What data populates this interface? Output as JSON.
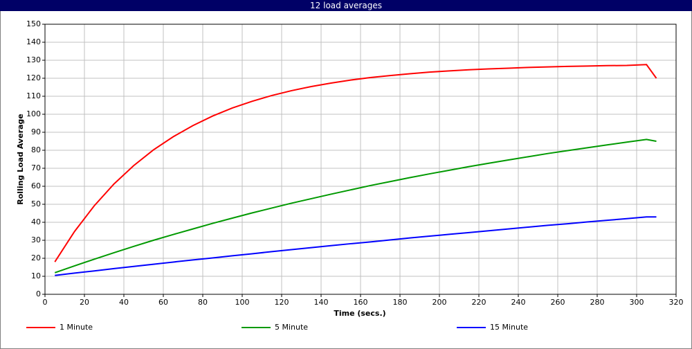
{
  "chart_data": {
    "type": "line",
    "title": "12 load averages",
    "x_label": "Time (secs.)",
    "y_label": "Rolling Load Average",
    "x": [
      5,
      15,
      25,
      35,
      45,
      55,
      65,
      75,
      85,
      95,
      105,
      115,
      125,
      135,
      145,
      155,
      165,
      175,
      185,
      195,
      205,
      215,
      225,
      235,
      245,
      255,
      265,
      275,
      285,
      295,
      305,
      310
    ],
    "series": [
      {
        "name": "1 Minute",
        "color": "#ff0000",
        "values": [
          18,
          34.9,
          49.2,
          61.3,
          71.5,
          80.2,
          87.5,
          93.7,
          99.0,
          103.5,
          107.2,
          110.4,
          113.1,
          115.4,
          117.3,
          119.0,
          120.4,
          121.5,
          122.5,
          123.4,
          124.1,
          124.7,
          125.2,
          125.6,
          126.0,
          126.3,
          126.6,
          126.8,
          127.0,
          127.1,
          127.6,
          120
        ]
      },
      {
        "name": "5 Minute",
        "color": "#009900",
        "values": [
          12,
          15.8,
          19.5,
          23.1,
          26.6,
          30.0,
          33.2,
          36.3,
          39.4,
          42.3,
          45.2,
          47.9,
          50.6,
          53.1,
          55.6,
          58.0,
          60.4,
          62.6,
          64.8,
          66.9,
          68.9,
          70.9,
          72.8,
          74.6,
          76.4,
          78.2,
          79.8,
          81.4,
          83.0,
          84.5,
          86.0,
          85
        ]
      },
      {
        "name": "15 Minute",
        "color": "#0000ff",
        "values": [
          10.5,
          11.8,
          13.0,
          14.3,
          15.5,
          16.7,
          17.9,
          19.1,
          20.2,
          21.4,
          22.5,
          23.7,
          24.8,
          25.9,
          27.0,
          28.1,
          29.1,
          30.2,
          31.3,
          32.3,
          33.3,
          34.3,
          35.3,
          36.3,
          37.3,
          38.3,
          39.2,
          40.2,
          41.1,
          42.0,
          43.0,
          43.0
        ]
      }
    ],
    "xlim": [
      0,
      320
    ],
    "xticks": [
      0,
      20,
      40,
      60,
      80,
      100,
      120,
      140,
      160,
      180,
      200,
      220,
      240,
      260,
      280,
      300,
      320
    ],
    "ylim": [
      0,
      150
    ],
    "yticks": [
      0,
      10,
      20,
      30,
      40,
      50,
      60,
      70,
      80,
      90,
      100,
      110,
      120,
      130,
      140,
      150
    ],
    "grid": true,
    "legend": "bottom"
  }
}
